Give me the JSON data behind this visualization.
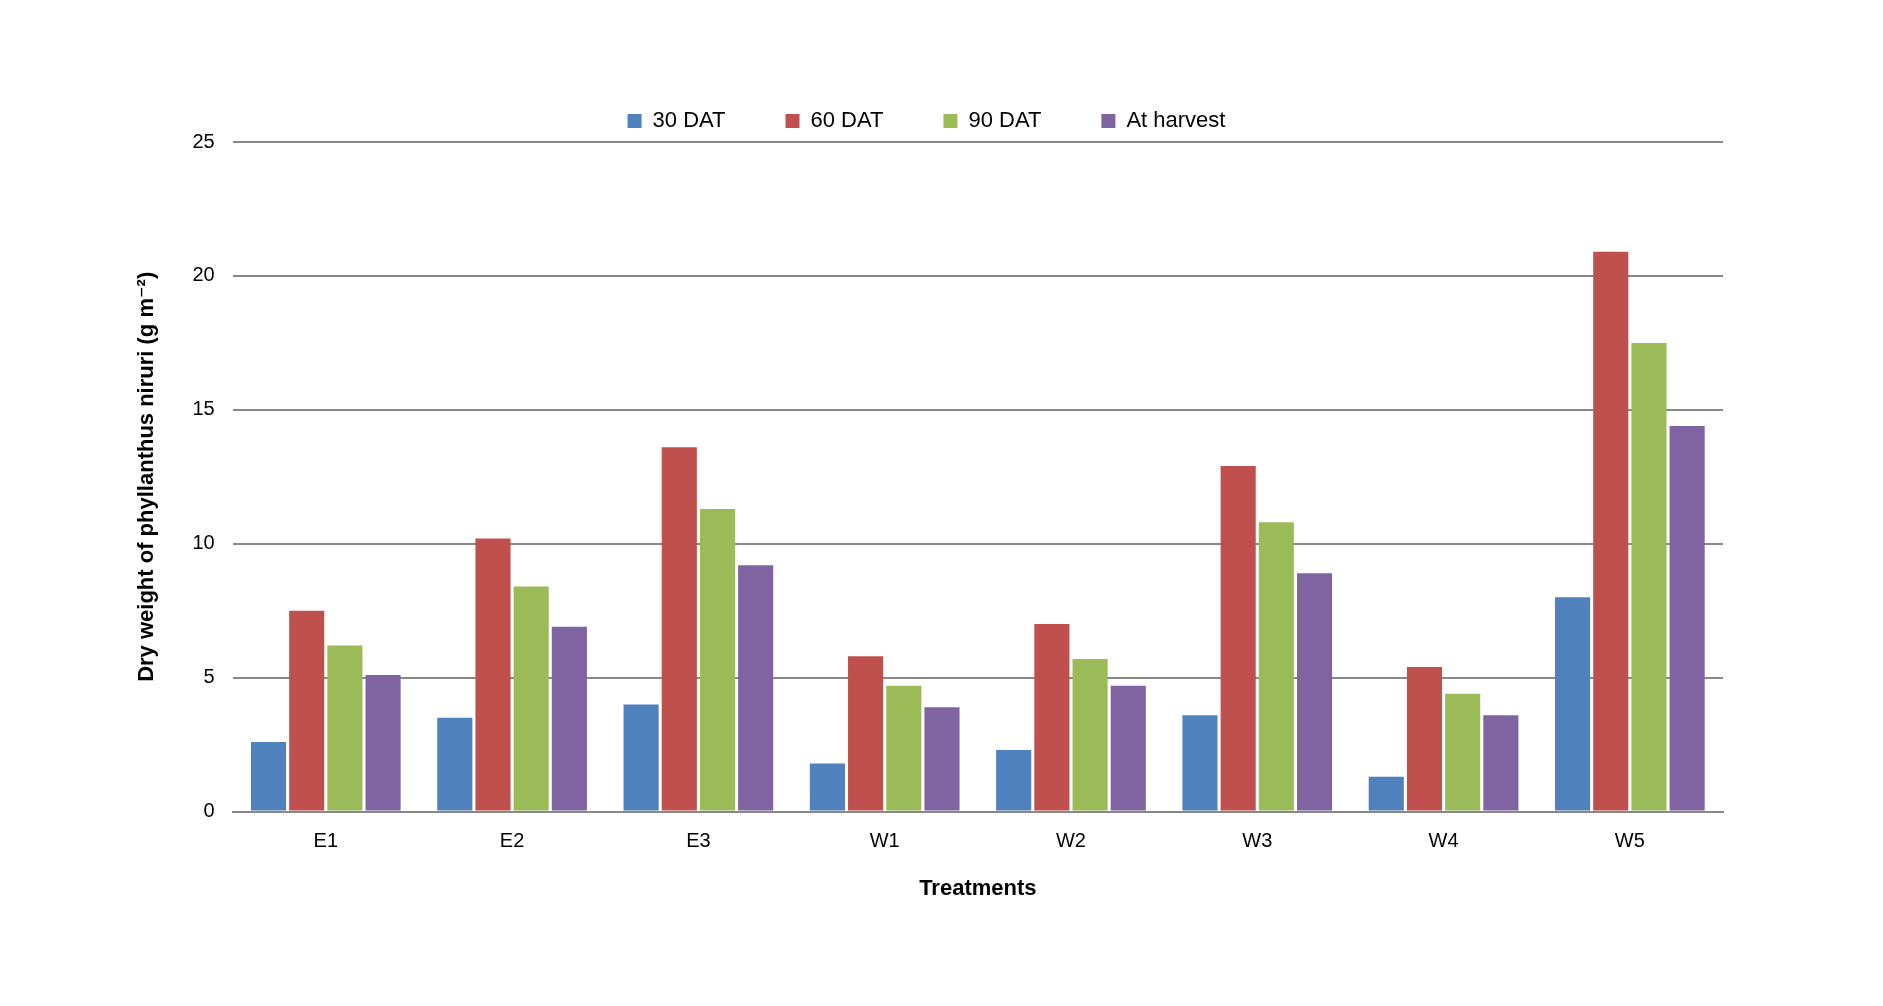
{
  "chart_data": {
    "type": "bar",
    "xlabel": "Treatments",
    "ylabel": "Dry weight of phyllanthus niruri (g m⁻²)",
    "categories": [
      "E1",
      "E2",
      "E3",
      "W1",
      "W2",
      "W3",
      "W4",
      "W5"
    ],
    "series": [
      {
        "name": "30 DAT",
        "color": "#4f81bd",
        "values": [
          2.6,
          3.5,
          4.0,
          1.8,
          2.3,
          3.6,
          1.3,
          8.0
        ]
      },
      {
        "name": "60 DAT",
        "color": "#c0504d",
        "values": [
          7.5,
          10.2,
          13.6,
          5.8,
          7.0,
          12.9,
          5.4,
          20.9
        ]
      },
      {
        "name": "90 DAT",
        "color": "#9bbb59",
        "values": [
          6.2,
          8.4,
          11.3,
          4.7,
          5.7,
          10.8,
          4.4,
          17.5
        ]
      },
      {
        "name": "At harvest",
        "color": "#8064a2",
        "values": [
          5.1,
          6.9,
          9.2,
          3.9,
          4.7,
          8.9,
          3.6,
          14.4
        ]
      }
    ],
    "ylim": [
      0,
      25
    ],
    "yticks": [
      0,
      5,
      10,
      15,
      20,
      25
    ],
    "grid": "y",
    "legend": "top"
  }
}
